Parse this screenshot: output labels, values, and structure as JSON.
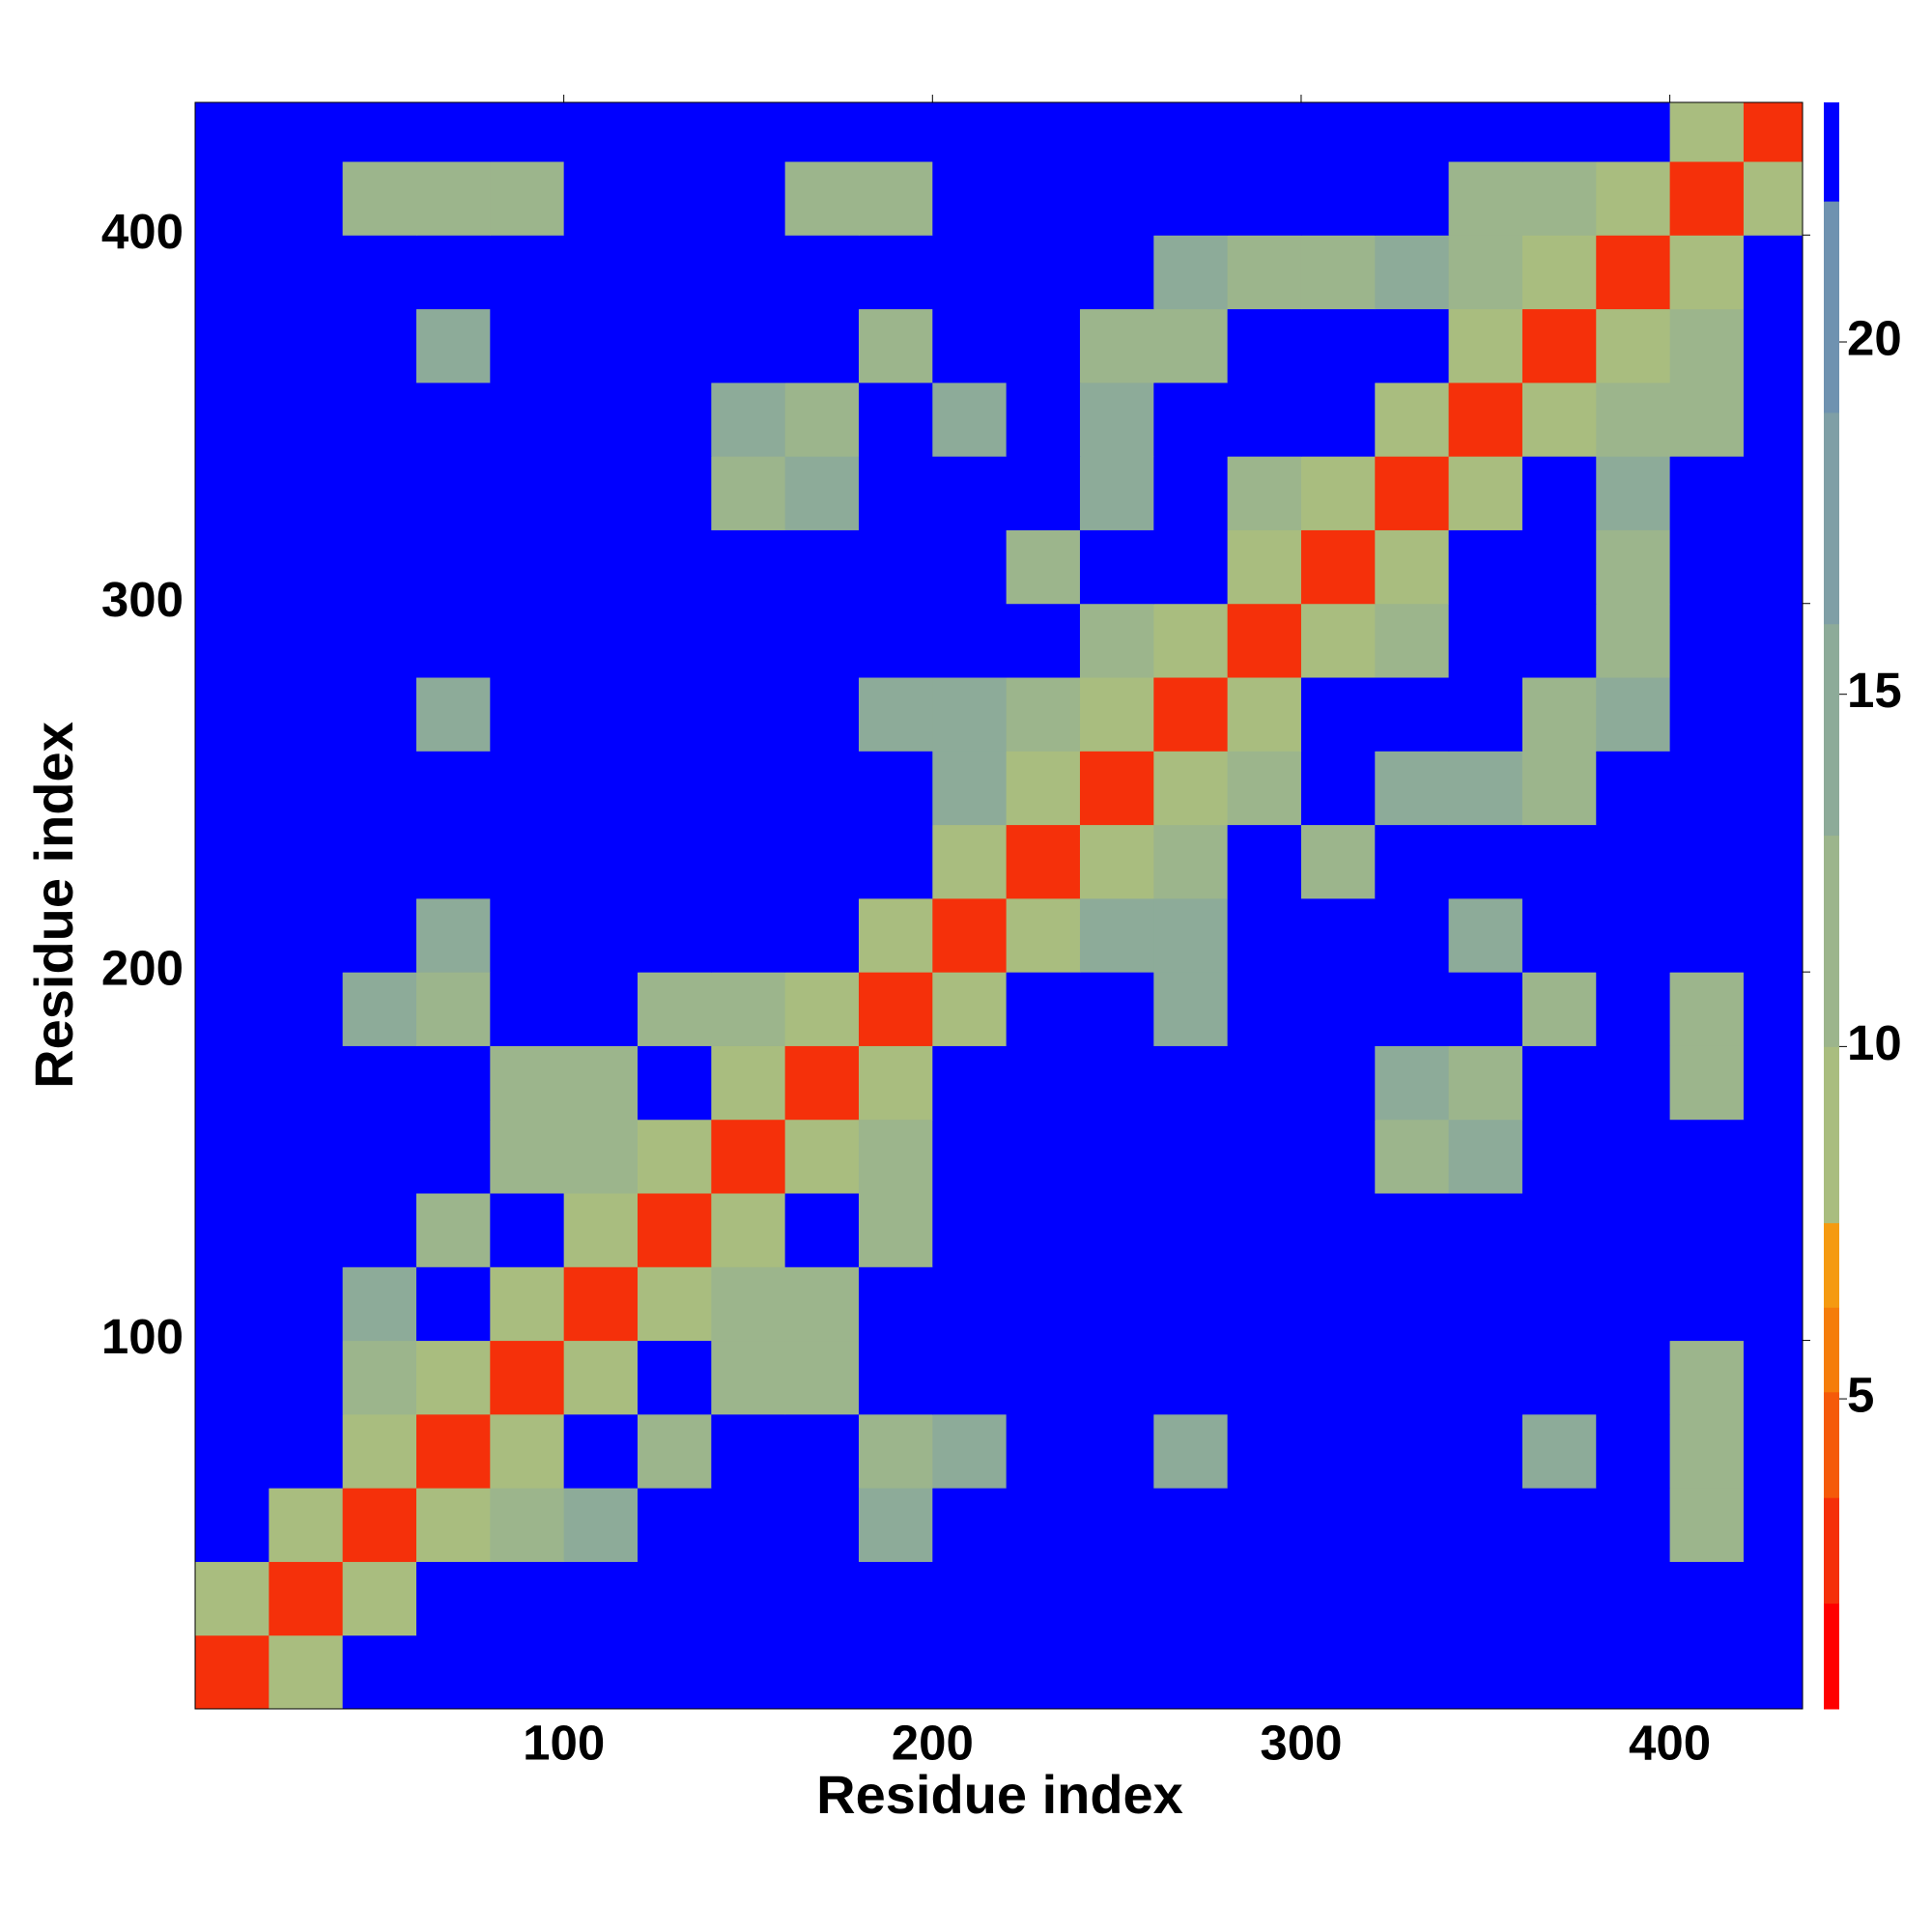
{
  "chart_data": {
    "type": "heatmap",
    "x_label": "Residue index",
    "y_label": "Residue index",
    "x": [
      10,
      30,
      50,
      70,
      90,
      110,
      130,
      150,
      170,
      190,
      210,
      230,
      250,
      270,
      290,
      310,
      330,
      350,
      370,
      390,
      410,
      430
    ],
    "y": [
      10,
      30,
      50,
      70,
      90,
      110,
      130,
      150,
      170,
      190,
      210,
      230,
      250,
      270,
      290,
      310,
      330,
      350,
      370,
      390,
      410,
      430
    ],
    "z": [
      [
        3,
        10,
        23,
        23,
        23,
        23,
        23,
        23,
        23,
        23,
        23,
        23,
        23,
        23,
        23,
        23,
        23,
        23,
        23,
        23,
        23,
        23
      ],
      [
        10,
        3,
        10,
        23,
        23,
        23,
        23,
        23,
        23,
        23,
        23,
        23,
        23,
        23,
        23,
        23,
        23,
        23,
        23,
        23,
        23,
        23
      ],
      [
        23,
        10,
        3,
        10,
        12,
        14,
        23,
        23,
        23,
        15,
        23,
        23,
        23,
        23,
        23,
        23,
        23,
        23,
        23,
        23,
        13,
        23
      ],
      [
        23,
        23,
        10,
        3,
        10,
        23,
        13,
        23,
        23,
        13,
        15,
        23,
        23,
        15,
        23,
        23,
        23,
        23,
        15,
        23,
        12,
        23
      ],
      [
        23,
        23,
        12,
        10,
        3,
        10,
        23,
        13,
        13,
        23,
        23,
        23,
        23,
        23,
        23,
        23,
        23,
        23,
        23,
        23,
        13,
        23
      ],
      [
        23,
        23,
        14,
        23,
        10,
        3,
        10,
        13,
        13,
        23,
        23,
        23,
        23,
        23,
        23,
        23,
        23,
        23,
        23,
        23,
        23,
        23
      ],
      [
        23,
        23,
        23,
        13,
        23,
        10,
        3,
        10,
        23,
        13,
        23,
        23,
        23,
        23,
        23,
        23,
        23,
        23,
        23,
        23,
        23,
        23
      ],
      [
        23,
        23,
        23,
        23,
        13,
        13,
        10,
        3,
        10,
        13,
        23,
        23,
        23,
        23,
        23,
        23,
        13,
        14,
        23,
        23,
        23,
        23
      ],
      [
        23,
        23,
        23,
        23,
        13,
        13,
        23,
        10,
        3,
        10,
        23,
        23,
        23,
        23,
        23,
        23,
        14,
        13,
        23,
        23,
        13,
        23
      ],
      [
        23,
        23,
        15,
        13,
        23,
        23,
        13,
        13,
        10,
        3,
        10,
        23,
        23,
        14,
        23,
        23,
        23,
        23,
        13,
        23,
        13,
        23
      ],
      [
        23,
        23,
        23,
        15,
        23,
        23,
        23,
        23,
        23,
        10,
        3,
        10,
        14,
        14,
        23,
        23,
        23,
        14,
        23,
        23,
        23,
        23
      ],
      [
        23,
        23,
        23,
        23,
        23,
        23,
        23,
        23,
        23,
        23,
        10,
        3,
        10,
        13,
        23,
        12,
        23,
        23,
        23,
        23,
        23,
        23
      ],
      [
        23,
        23,
        23,
        23,
        23,
        23,
        23,
        23,
        23,
        23,
        14,
        10,
        3,
        10,
        12,
        23,
        14,
        15,
        13,
        23,
        23,
        23
      ],
      [
        23,
        23,
        23,
        15,
        23,
        23,
        23,
        23,
        23,
        14,
        14,
        13,
        10,
        3,
        10,
        23,
        23,
        23,
        13,
        14,
        23,
        23
      ],
      [
        23,
        23,
        23,
        23,
        23,
        23,
        23,
        23,
        23,
        23,
        23,
        23,
        12,
        10,
        3,
        10,
        13,
        23,
        23,
        13,
        23,
        23
      ],
      [
        23,
        23,
        23,
        23,
        23,
        23,
        23,
        23,
        23,
        23,
        23,
        12,
        23,
        23,
        10,
        3,
        10,
        23,
        23,
        13,
        23,
        23
      ],
      [
        23,
        23,
        23,
        23,
        23,
        23,
        23,
        13,
        14,
        23,
        23,
        23,
        14,
        23,
        13,
        10,
        3,
        10,
        23,
        14,
        23,
        23
      ],
      [
        23,
        23,
        23,
        23,
        23,
        23,
        23,
        14,
        13,
        23,
        14,
        23,
        15,
        23,
        23,
        23,
        10,
        3,
        10,
        13,
        13,
        23
      ],
      [
        23,
        23,
        23,
        15,
        23,
        23,
        23,
        23,
        23,
        13,
        23,
        23,
        13,
        13,
        23,
        23,
        23,
        10,
        3,
        10,
        12,
        23
      ],
      [
        23,
        23,
        23,
        23,
        23,
        23,
        23,
        23,
        23,
        23,
        23,
        23,
        23,
        14,
        13,
        13,
        14,
        13,
        10,
        3,
        10,
        23
      ],
      [
        23,
        23,
        13,
        12,
        13,
        23,
        23,
        23,
        13,
        13,
        23,
        23,
        23,
        23,
        23,
        23,
        23,
        13,
        12,
        10,
        3,
        10
      ],
      [
        23,
        23,
        23,
        23,
        23,
        23,
        23,
        23,
        23,
        23,
        23,
        23,
        23,
        23,
        23,
        23,
        23,
        23,
        23,
        23,
        10,
        3
      ]
    ],
    "xlim": [
      0,
      436
    ],
    "ylim": [
      0,
      436
    ],
    "xticks": [
      100,
      200,
      300,
      400
    ],
    "yticks": [
      100,
      200,
      300,
      400
    ],
    "zlim": [
      0.6,
      23.4
    ],
    "colorbar_ticks": [
      5,
      10,
      15,
      20
    ],
    "colorbar_levels": [
      0.6,
      2.1,
      3.6,
      5.1,
      6.3,
      7.5,
      10,
      13,
      16,
      19,
      22,
      23.4
    ],
    "colorbar_colors": [
      "#ff0000",
      "#f5300a",
      "#f55a0a",
      "#f57d0a",
      "#f59a10",
      "#a9bd7f",
      "#9cb58c",
      "#8dab99",
      "#7f9fa6",
      "#6f92b0",
      "#0000ff"
    ]
  }
}
